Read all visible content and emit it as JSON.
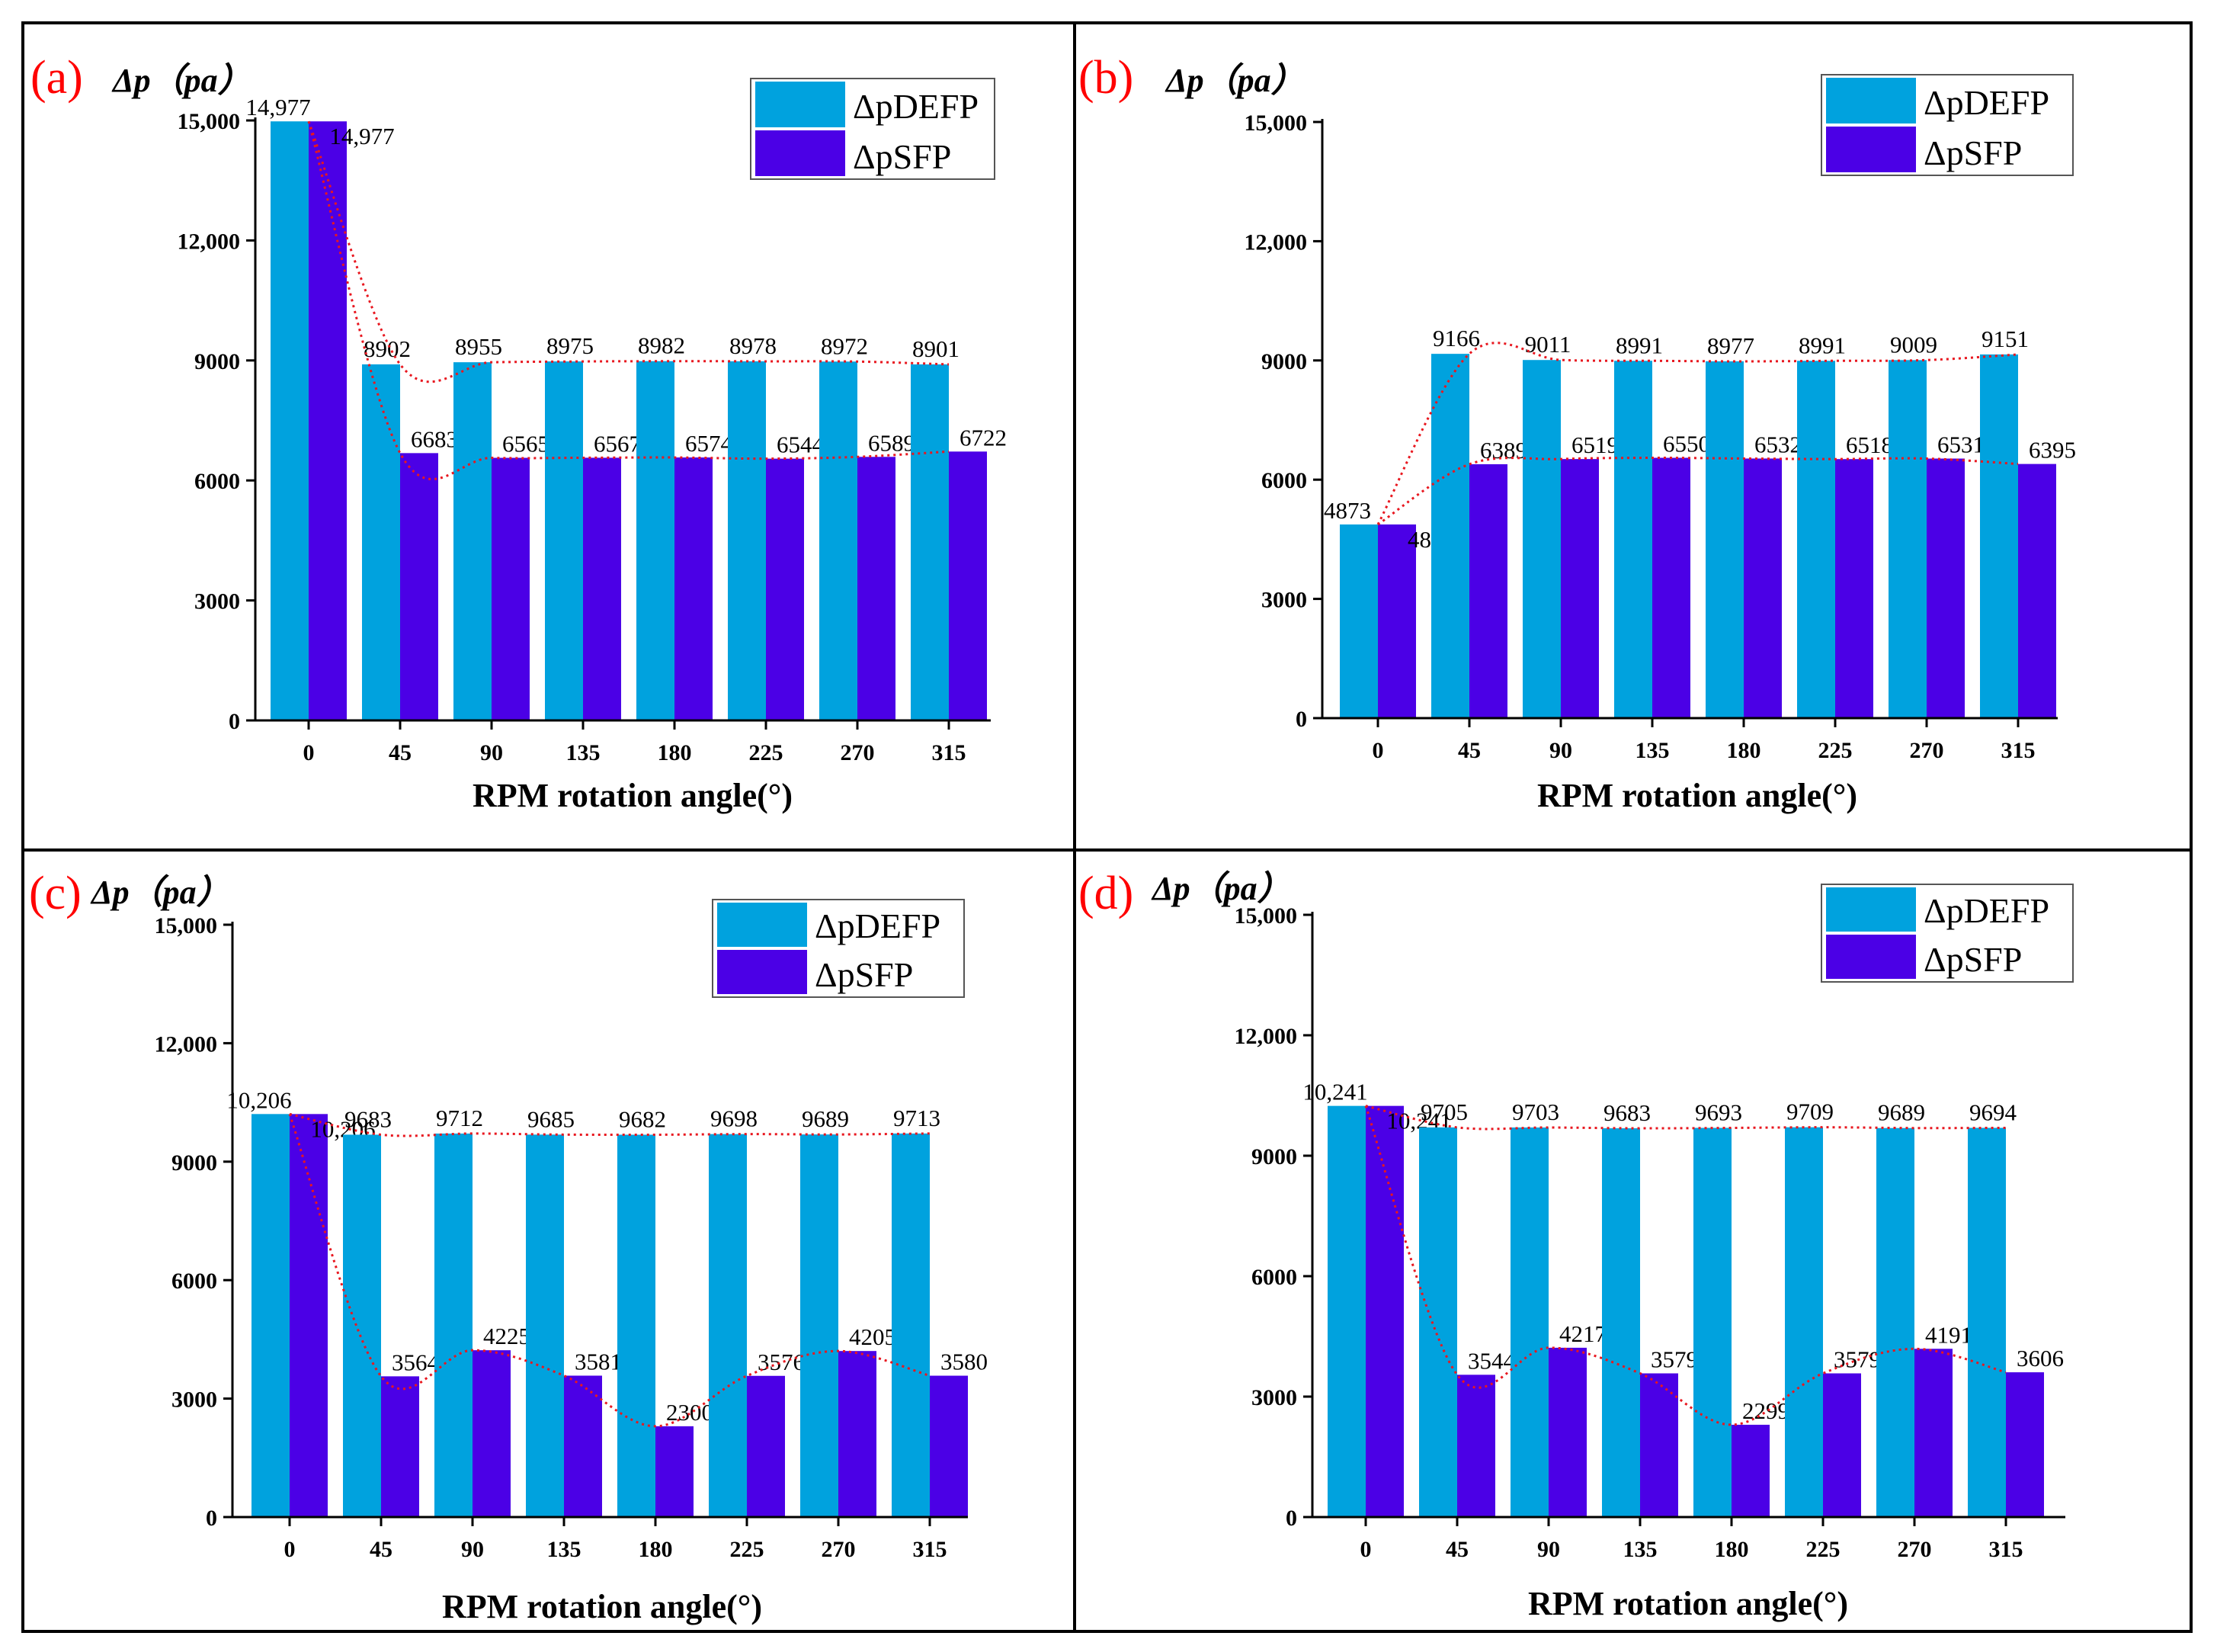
{
  "colors": {
    "defp": "#00A2DE",
    "sfp": "#4B00E6",
    "trend": "#E8171F",
    "panel_label": "#FF0000"
  },
  "chart_data": [
    {
      "type": "bar",
      "panel_label": "(a)",
      "ylabel": "Δp（pa）",
      "xlabel": "RPM rotation angle(°)",
      "categories": [
        "0",
        "45",
        "90",
        "135",
        "180",
        "225",
        "270",
        "315"
      ],
      "ylim": [
        0,
        15000
      ],
      "yticks": [
        "0",
        "3000",
        "6000",
        "9000",
        "12,000",
        "15,000"
      ],
      "legend_position": "top-right",
      "series": [
        {
          "name": "ΔpDEFP",
          "values": [
            14977,
            8902,
            8955,
            8975,
            8982,
            8978,
            8972,
            8901
          ],
          "labels": [
            "14,977",
            "8902",
            "8955",
            "8975",
            "8982",
            "8978",
            "8972",
            "8901"
          ]
        },
        {
          "name": "ΔpSFP",
          "values": [
            14977,
            6683,
            6565,
            6567,
            6574,
            6544,
            6589,
            6722
          ],
          "labels": [
            "14,977",
            "6683",
            "6565",
            "6567",
            "6574",
            "6544",
            "6589",
            "6722"
          ]
        }
      ]
    },
    {
      "type": "bar",
      "panel_label": "(b)",
      "ylabel": "Δp（pa）",
      "xlabel": "RPM rotation angle(°)",
      "categories": [
        "0",
        "45",
        "90",
        "135",
        "180",
        "225",
        "270",
        "315"
      ],
      "ylim": [
        0,
        15000
      ],
      "yticks": [
        "0",
        "3000",
        "6000",
        "9000",
        "12,000",
        "15,000"
      ],
      "legend_position": "top-right",
      "series": [
        {
          "name": "ΔpDEFP",
          "values": [
            4873,
            9166,
            9011,
            8991,
            8977,
            8991,
            9009,
            9151
          ],
          "labels": [
            "4873",
            "9166",
            "9011",
            "8991",
            "8977",
            "8991",
            "9009",
            "9151"
          ]
        },
        {
          "name": "ΔpSFP",
          "values": [
            4873,
            6389,
            6519,
            6550,
            6532,
            6518,
            6531,
            6395
          ],
          "labels": [
            "4873",
            "6389",
            "6519",
            "6550",
            "6532",
            "6518",
            "6531",
            "6395"
          ]
        }
      ]
    },
    {
      "type": "bar",
      "panel_label": "(c)",
      "ylabel": "Δp（pa）",
      "xlabel": "RPM rotation angle(°)",
      "categories": [
        "0",
        "45",
        "90",
        "135",
        "180",
        "225",
        "270",
        "315"
      ],
      "ylim": [
        0,
        15000
      ],
      "yticks": [
        "0",
        "3000",
        "6000",
        "9000",
        "12,000",
        "15,000"
      ],
      "legend_position": "top-right",
      "series": [
        {
          "name": "ΔpDEFP",
          "values": [
            10206,
            9683,
            9712,
            9685,
            9682,
            9698,
            9689,
            9713
          ],
          "labels": [
            "10,206",
            "9683",
            "9712",
            "9685",
            "9682",
            "9698",
            "9689",
            "9713"
          ]
        },
        {
          "name": "ΔpSFP",
          "values": [
            10206,
            3564,
            4225,
            3581,
            2300,
            3576,
            4205,
            3580
          ],
          "labels": [
            "10,206",
            "3564",
            "4225",
            "3581",
            "2300",
            "3576",
            "4205",
            "3580"
          ]
        }
      ]
    },
    {
      "type": "bar",
      "panel_label": "(d)",
      "ylabel": "Δp（pa）",
      "xlabel": "RPM rotation angle(°)",
      "categories": [
        "0",
        "45",
        "90",
        "135",
        "180",
        "225",
        "270",
        "315"
      ],
      "ylim": [
        0,
        15000
      ],
      "yticks": [
        "0",
        "3000",
        "6000",
        "9000",
        "12,000",
        "15,000"
      ],
      "legend_position": "top-right",
      "series": [
        {
          "name": "ΔpDEFP",
          "values": [
            10241,
            9705,
            9703,
            9683,
            9693,
            9709,
            9689,
            9694
          ],
          "labels": [
            "10,241",
            "9705",
            "9703",
            "9683",
            "9693",
            "9709",
            "9689",
            "9694"
          ]
        },
        {
          "name": "ΔpSFP",
          "values": [
            10241,
            3544,
            4217,
            3579,
            2299,
            3579,
            4191,
            3606
          ],
          "labels": [
            "10,241",
            "3544",
            "4217",
            "3579",
            "2299",
            "3579",
            "4191",
            "3606"
          ]
        }
      ]
    }
  ]
}
